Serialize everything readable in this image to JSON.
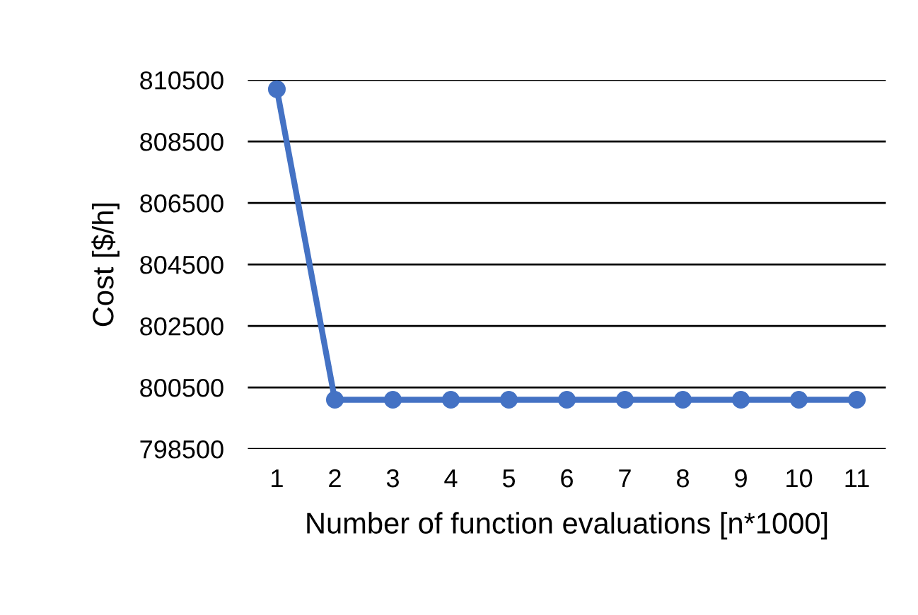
{
  "chart_data": {
    "type": "line",
    "xlabel": "Number of function evaluations [n*1000]",
    "ylabel": "Cost [$/h]",
    "categories": [
      "1",
      "2",
      "3",
      "4",
      "5",
      "6",
      "7",
      "8",
      "9",
      "10",
      "11"
    ],
    "series": [
      {
        "color": "#4472c4",
        "values": [
          810200,
          800100,
          800100,
          800100,
          800100,
          800100,
          800100,
          800100,
          800100,
          800100,
          800100
        ]
      }
    ],
    "ylim": [
      798500,
      810500
    ],
    "yticks": [
      798500,
      800500,
      802500,
      804500,
      806500,
      808500,
      810500
    ],
    "grid": "y",
    "marker": "circle",
    "line_style": "solid"
  }
}
